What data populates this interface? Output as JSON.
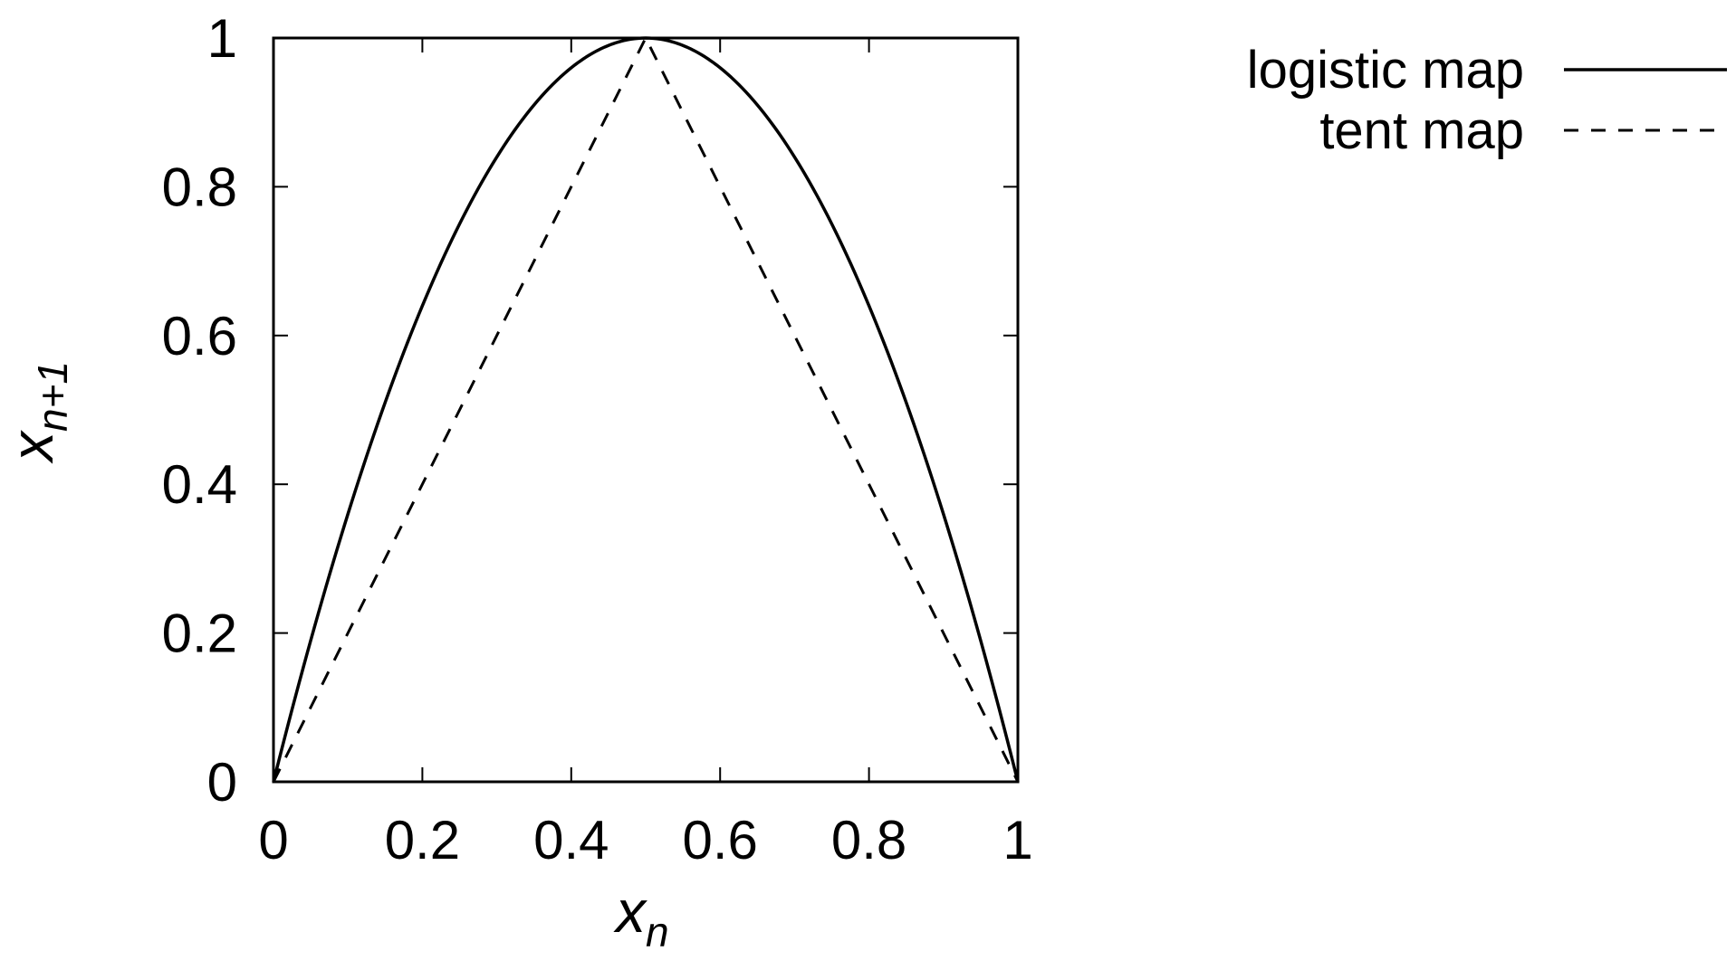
{
  "chart_data": {
    "type": "line",
    "xlabel": "x",
    "xlabel_sub": "n",
    "ylabel": "x",
    "ylabel_sub": "n+1",
    "xlim": [
      0,
      1
    ],
    "ylim": [
      0,
      1
    ],
    "xticks": [
      0,
      0.2,
      0.4,
      0.6,
      0.8,
      1
    ],
    "xtick_labels": [
      "0",
      "0.2",
      "0.4",
      "0.6",
      "0.8",
      "1"
    ],
    "yticks": [
      0,
      0.2,
      0.4,
      0.6,
      0.8,
      1
    ],
    "ytick_labels": [
      "0",
      "0.2",
      "0.4",
      "0.6",
      "0.8",
      "1"
    ],
    "grid": false,
    "legend_position": "top-right, outside plot",
    "line_color": "#000000",
    "series": [
      {
        "name": "logistic map",
        "style": "solid",
        "x": [
          0,
          0.05,
          0.1,
          0.15,
          0.2,
          0.25,
          0.3,
          0.35,
          0.4,
          0.45,
          0.5,
          0.55,
          0.6,
          0.65,
          0.7,
          0.75,
          0.8,
          0.85,
          0.9,
          0.95,
          1
        ],
        "y": [
          0,
          0.19,
          0.36,
          0.51,
          0.64,
          0.75,
          0.84,
          0.91,
          0.96,
          0.99,
          1,
          0.99,
          0.96,
          0.91,
          0.84,
          0.75,
          0.64,
          0.51,
          0.36,
          0.19,
          0
        ]
      },
      {
        "name": "tent map",
        "style": "dashed",
        "x": [
          0,
          0.5,
          1
        ],
        "y": [
          0,
          1,
          0
        ]
      }
    ]
  }
}
